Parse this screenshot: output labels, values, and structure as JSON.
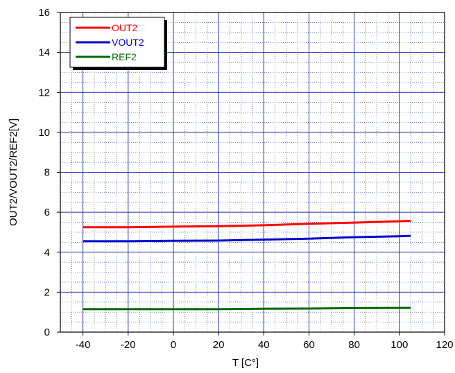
{
  "chart_data": {
    "type": "line",
    "xlabel": "T  [C°]",
    "ylabel": "OUT2/VOUT2/REF2[V]",
    "xlim": [
      -50,
      120
    ],
    "ylim": [
      0,
      16
    ],
    "xticks": [
      -40,
      -20,
      0,
      20,
      40,
      60,
      80,
      100,
      120
    ],
    "yticks": [
      0,
      2,
      4,
      6,
      8,
      10,
      12,
      14,
      16
    ],
    "grid": true,
    "legend_position": "top-left",
    "series": [
      {
        "name": "OUT2",
        "color": "#ff0000",
        "x": [
          -40,
          -20,
          0,
          20,
          40,
          60,
          80,
          100,
          105
        ],
        "y": [
          5.25,
          5.25,
          5.28,
          5.3,
          5.35,
          5.42,
          5.48,
          5.55,
          5.57
        ]
      },
      {
        "name": "VOUT2",
        "color": "#0000cc",
        "x": [
          -40,
          -20,
          0,
          20,
          40,
          60,
          80,
          100,
          105
        ],
        "y": [
          4.55,
          4.55,
          4.57,
          4.58,
          4.63,
          4.68,
          4.75,
          4.8,
          4.82
        ]
      },
      {
        "name": "REF2",
        "color": "#006600",
        "x": [
          -40,
          -20,
          0,
          20,
          40,
          60,
          80,
          100,
          105
        ],
        "y": [
          1.15,
          1.15,
          1.15,
          1.15,
          1.17,
          1.18,
          1.2,
          1.21,
          1.21
        ]
      }
    ]
  }
}
